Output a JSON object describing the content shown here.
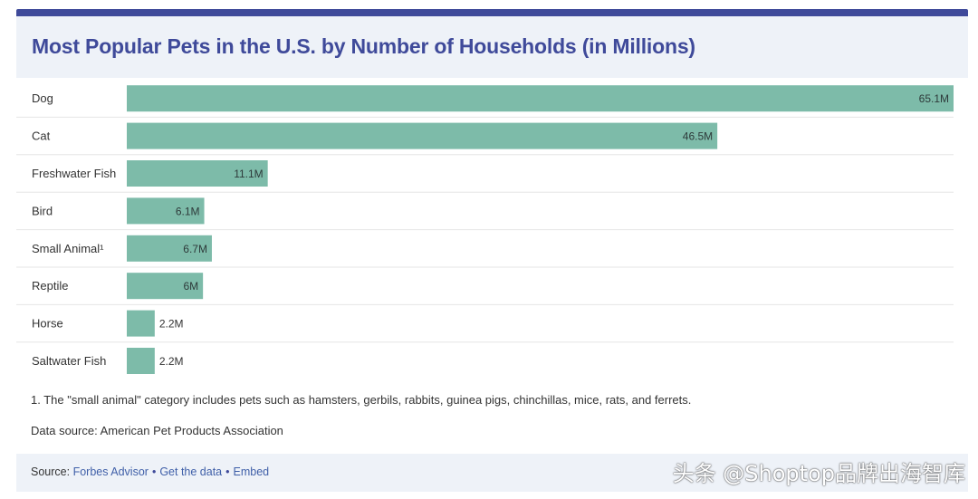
{
  "title": "Most Popular Pets in the U.S. by Number of Households (in Millions)",
  "footnote": "1. The \"small animal\" category includes pets such as hamsters, gerbils, rabbits, guinea pigs, chinchillas, mice, rats, and ferrets.",
  "data_source": "Data source: American Pet Products Association",
  "footer": {
    "source_prefix": "Source: ",
    "source_link": "Forbes Advisor",
    "separator": "•",
    "get_data": "Get the data",
    "embed": "Embed"
  },
  "watermark": "头条 @Shoptop品牌出海智库",
  "colors": {
    "bar": "#7dbba9",
    "title": "#3f4a9a",
    "header_bg": "#eef2f8"
  },
  "chart_data": {
    "type": "bar",
    "orientation": "horizontal",
    "categories": [
      "Dog",
      "Cat",
      "Freshwater Fish",
      "Bird",
      "Small Animal¹",
      "Reptile",
      "Horse",
      "Saltwater Fish"
    ],
    "values": [
      65.1,
      46.5,
      11.1,
      6.1,
      6.7,
      6,
      2.2,
      2.2
    ],
    "value_labels": [
      "65.1M",
      "46.5M",
      "11.1M",
      "6.1M",
      "6.7M",
      "6M",
      "2.2M",
      "2.2M"
    ],
    "title": "Most Popular Pets in the U.S. by Number of Households (in Millions)",
    "xlabel": "",
    "ylabel": "",
    "xlim": [
      0,
      65.1
    ],
    "grid": "horizontal row separators",
    "legend": "none"
  }
}
